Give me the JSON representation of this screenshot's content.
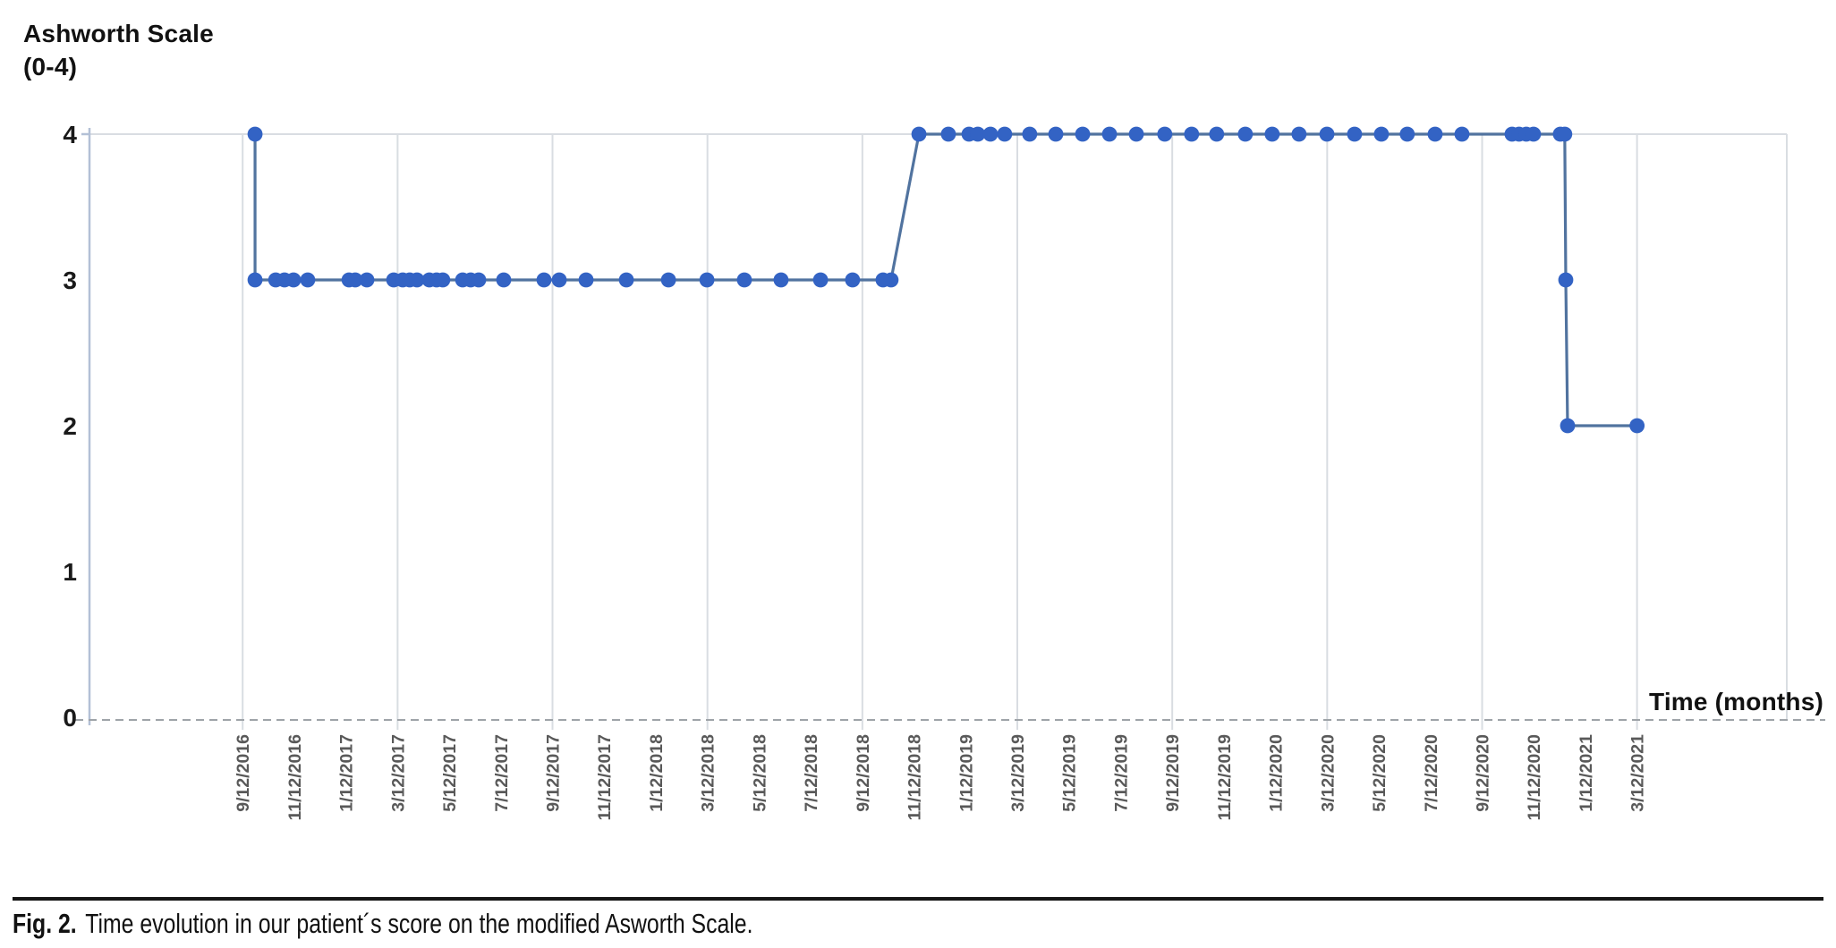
{
  "title": {
    "line1": "Ashworth Scale",
    "line2": "(0-4)"
  },
  "axis": {
    "x_title": "Time (months)"
  },
  "caption": {
    "fig_label": "Fig. 2.",
    "text": "Time evolution in our patient´s score on the modified Asworth Scale."
  },
  "colors": {
    "marker": "#3363c4",
    "line": "#51739f",
    "grid": "#d9dde2",
    "y_axis_line": "#b3c0d6",
    "dashed_axis": "#9ea3a8",
    "x_tick_text": "#595959",
    "y_tick_text": "#1a1a1a"
  },
  "chart_data": {
    "type": "line",
    "title": "Ashworth Scale (0-4)",
    "xlabel": "Time (months)",
    "ylabel": "Ashworth Scale (0-4)",
    "ylim": [
      0,
      4
    ],
    "y_ticks": [
      0,
      1,
      2,
      3,
      4
    ],
    "grid": "vertical gridlines every 6 months; dotted baseline at 0",
    "legend": "none",
    "x_tick_labels": [
      "9/12/2016",
      "11/12/2016",
      "1/12/2017",
      "3/12/2017",
      "5/12/2017",
      "7/12/2017",
      "9/12/2017",
      "11/12/2017",
      "1/12/2018",
      "3/12/2018",
      "5/12/2018",
      "7/12/2018",
      "9/12/2018",
      "11/12/2018",
      "1/12/2019",
      "3/12/2019",
      "5/12/2019",
      "7/12/2019",
      "9/12/2019",
      "11/12/2019",
      "1/12/2020",
      "3/12/2020",
      "5/12/2020",
      "7/12/2020",
      "9/12/2020",
      "11/12/2020",
      "1/12/2021",
      "3/12/2021"
    ],
    "x_tick_interval_months": 2,
    "x_encoding_note": "series points are [months after 9/12/2016, Ashworth score]",
    "series": [
      {
        "name": "Modified Ashworth Scale score",
        "points": [
          [
            0.48,
            4
          ],
          [
            0.48,
            3
          ],
          [
            1.28,
            3
          ],
          [
            1.62,
            3
          ],
          [
            1.97,
            3
          ],
          [
            2.52,
            3
          ],
          [
            4.12,
            3
          ],
          [
            4.36,
            3
          ],
          [
            4.81,
            3
          ],
          [
            5.85,
            3
          ],
          [
            6.2,
            3
          ],
          [
            6.47,
            3
          ],
          [
            6.75,
            3
          ],
          [
            7.23,
            3
          ],
          [
            7.51,
            3
          ],
          [
            7.75,
            3
          ],
          [
            8.52,
            3
          ],
          [
            8.83,
            3
          ],
          [
            9.14,
            3
          ],
          [
            10.11,
            3
          ],
          [
            11.67,
            3
          ],
          [
            12.26,
            3
          ],
          [
            13.3,
            3
          ],
          [
            14.86,
            3
          ],
          [
            16.49,
            3
          ],
          [
            17.98,
            3
          ],
          [
            19.43,
            3
          ],
          [
            20.85,
            3
          ],
          [
            22.38,
            3
          ],
          [
            23.62,
            3
          ],
          [
            24.8,
            3
          ],
          [
            25.11,
            3
          ],
          [
            26.19,
            4
          ],
          [
            27.33,
            4
          ],
          [
            28.13,
            4
          ],
          [
            28.47,
            4
          ],
          [
            28.96,
            4
          ],
          [
            29.51,
            4
          ],
          [
            30.48,
            4
          ],
          [
            31.49,
            4
          ],
          [
            32.53,
            4
          ],
          [
            33.57,
            4
          ],
          [
            34.61,
            4
          ],
          [
            35.71,
            4
          ],
          [
            36.75,
            4
          ],
          [
            37.72,
            4
          ],
          [
            38.83,
            4
          ],
          [
            39.87,
            4
          ],
          [
            40.91,
            4
          ],
          [
            41.99,
            4
          ],
          [
            43.06,
            4
          ],
          [
            44.1,
            4
          ],
          [
            45.1,
            4
          ],
          [
            46.18,
            4
          ],
          [
            47.22,
            4
          ],
          [
            49.16,
            4
          ],
          [
            49.43,
            4
          ],
          [
            49.71,
            4
          ],
          [
            49.99,
            4
          ],
          [
            51.03,
            4
          ],
          [
            51.2,
            4
          ],
          [
            51.24,
            3
          ],
          [
            51.31,
            2
          ],
          [
            54.0,
            2
          ]
        ]
      }
    ]
  }
}
